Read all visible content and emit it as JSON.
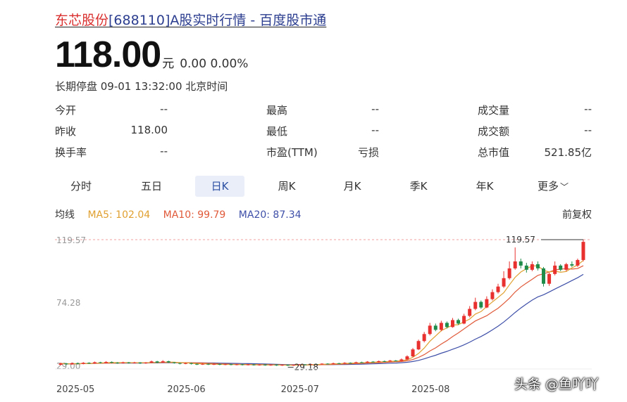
{
  "header": {
    "title_name": "东芯股份",
    "title_rest": "[688110]A股实时行情 - 百度股市通"
  },
  "quote": {
    "price": "118.00",
    "unit": "元",
    "change": "0.00 0.00%",
    "status": "长期停盘 09-01 13:32:00 北京时间"
  },
  "stats": [
    [
      {
        "label": "今开",
        "value": "--"
      },
      {
        "label": "最高",
        "value": "--"
      },
      {
        "label": "成交量",
        "value": "--"
      }
    ],
    [
      {
        "label": "昨收",
        "value": "118.00"
      },
      {
        "label": "最低",
        "value": "--"
      },
      {
        "label": "成交额",
        "value": "--"
      }
    ],
    [
      {
        "label": "换手率",
        "value": "--"
      },
      {
        "label": "市盈(TTM)",
        "value": "亏损"
      },
      {
        "label": "总市值",
        "value": "521.85亿"
      }
    ]
  ],
  "tabs": [
    "分时",
    "五日",
    "日K",
    "周K",
    "月K",
    "季K",
    "年K",
    "更多"
  ],
  "active_tab": "日K",
  "ma": {
    "label": "均线",
    "ma5": "MA5: 102.04",
    "ma10": "MA10: 99.79",
    "ma20": "MA20: 87.34",
    "adjust": "前复权"
  },
  "chart_data": {
    "type": "candlestick",
    "y_ticks": [
      "119.57",
      "74.28",
      "29.00"
    ],
    "ylim": [
      29,
      119.57
    ],
    "x_ticks": [
      {
        "label": "2025-05",
        "i": 0
      },
      {
        "label": "2025-06",
        "i": 20
      },
      {
        "label": "2025-07",
        "i": 40
      },
      {
        "label": "2025-08",
        "i": 63
      }
    ],
    "max_label": "119.57",
    "min_label": "29.18",
    "colors": {
      "up": "#e8312f",
      "down": "#1f8c4a",
      "ma5": "#e0a030",
      "ma10": "#e05a3a",
      "ma20": "#3e4fa8"
    },
    "candles": [
      {
        "o": 30.0,
        "c": 30.9,
        "h": 31.5,
        "l": 29.6
      },
      {
        "o": 30.9,
        "c": 30.3,
        "h": 31.3,
        "l": 29.9
      },
      {
        "o": 30.3,
        "c": 31.1,
        "h": 31.6,
        "l": 30.0
      },
      {
        "o": 31.1,
        "c": 30.6,
        "h": 31.5,
        "l": 30.2
      },
      {
        "o": 30.6,
        "c": 31.4,
        "h": 31.9,
        "l": 30.3
      },
      {
        "o": 31.4,
        "c": 31.0,
        "h": 31.8,
        "l": 30.6
      },
      {
        "o": 31.0,
        "c": 31.8,
        "h": 32.3,
        "l": 30.7
      },
      {
        "o": 31.8,
        "c": 31.3,
        "h": 32.1,
        "l": 30.9
      },
      {
        "o": 31.3,
        "c": 32.0,
        "h": 32.6,
        "l": 31.0
      },
      {
        "o": 32.0,
        "c": 31.5,
        "h": 32.4,
        "l": 31.1
      },
      {
        "o": 31.5,
        "c": 31.1,
        "h": 31.9,
        "l": 30.7
      },
      {
        "o": 31.1,
        "c": 31.7,
        "h": 32.2,
        "l": 30.8
      },
      {
        "o": 31.7,
        "c": 31.2,
        "h": 32.0,
        "l": 30.8
      },
      {
        "o": 31.2,
        "c": 31.6,
        "h": 32.1,
        "l": 30.9
      },
      {
        "o": 31.6,
        "c": 31.0,
        "h": 31.9,
        "l": 30.6
      },
      {
        "o": 31.0,
        "c": 31.5,
        "h": 31.9,
        "l": 30.7
      },
      {
        "o": 31.5,
        "c": 32.4,
        "h": 33.0,
        "l": 31.2
      },
      {
        "o": 32.4,
        "c": 31.6,
        "h": 32.8,
        "l": 31.2
      },
      {
        "o": 31.6,
        "c": 32.5,
        "h": 33.3,
        "l": 31.3
      },
      {
        "o": 32.5,
        "c": 31.7,
        "h": 32.9,
        "l": 31.3
      },
      {
        "o": 31.7,
        "c": 31.2,
        "h": 32.0,
        "l": 30.8
      },
      {
        "o": 31.2,
        "c": 30.7,
        "h": 31.5,
        "l": 30.3
      },
      {
        "o": 30.7,
        "c": 31.1,
        "h": 31.5,
        "l": 30.4
      },
      {
        "o": 31.1,
        "c": 30.6,
        "h": 31.4,
        "l": 30.2
      },
      {
        "o": 30.6,
        "c": 30.2,
        "h": 30.9,
        "l": 29.8
      },
      {
        "o": 30.2,
        "c": 30.6,
        "h": 31.0,
        "l": 29.9
      },
      {
        "o": 30.6,
        "c": 30.1,
        "h": 30.9,
        "l": 29.8
      },
      {
        "o": 30.1,
        "c": 30.5,
        "h": 30.9,
        "l": 29.8
      },
      {
        "o": 30.5,
        "c": 30.0,
        "h": 30.8,
        "l": 29.7
      },
      {
        "o": 30.0,
        "c": 30.4,
        "h": 30.8,
        "l": 29.7
      },
      {
        "o": 30.4,
        "c": 29.9,
        "h": 30.7,
        "l": 29.6
      },
      {
        "o": 29.9,
        "c": 30.3,
        "h": 30.6,
        "l": 29.6
      },
      {
        "o": 30.3,
        "c": 29.8,
        "h": 30.6,
        "l": 29.5
      },
      {
        "o": 29.8,
        "c": 30.2,
        "h": 30.5,
        "l": 29.5
      },
      {
        "o": 30.2,
        "c": 29.7,
        "h": 30.5,
        "l": 29.4
      },
      {
        "o": 29.7,
        "c": 30.1,
        "h": 30.4,
        "l": 29.4
      },
      {
        "o": 30.1,
        "c": 29.6,
        "h": 30.4,
        "l": 29.3
      },
      {
        "o": 29.6,
        "c": 30.0,
        "h": 30.3,
        "l": 29.3
      },
      {
        "o": 30.0,
        "c": 29.5,
        "h": 30.3,
        "l": 29.2
      },
      {
        "o": 29.5,
        "c": 29.9,
        "h": 30.2,
        "l": 29.2
      },
      {
        "o": 29.9,
        "c": 29.4,
        "h": 30.2,
        "l": 29.18
      },
      {
        "o": 29.4,
        "c": 29.9,
        "h": 30.2,
        "l": 29.2
      },
      {
        "o": 29.9,
        "c": 30.2,
        "h": 30.5,
        "l": 29.6
      },
      {
        "o": 30.2,
        "c": 30.0,
        "h": 30.5,
        "l": 29.7
      },
      {
        "o": 30.0,
        "c": 30.5,
        "h": 30.8,
        "l": 29.7
      },
      {
        "o": 30.5,
        "c": 30.3,
        "h": 30.8,
        "l": 30.0
      },
      {
        "o": 30.3,
        "c": 30.8,
        "h": 31.1,
        "l": 30.0
      },
      {
        "o": 30.8,
        "c": 30.6,
        "h": 31.1,
        "l": 30.3
      },
      {
        "o": 30.6,
        "c": 31.1,
        "h": 31.5,
        "l": 30.3
      },
      {
        "o": 31.1,
        "c": 30.9,
        "h": 31.4,
        "l": 30.6
      },
      {
        "o": 30.9,
        "c": 31.4,
        "h": 31.8,
        "l": 30.6
      },
      {
        "o": 31.4,
        "c": 31.2,
        "h": 31.7,
        "l": 30.9
      },
      {
        "o": 31.2,
        "c": 31.8,
        "h": 32.2,
        "l": 30.9
      },
      {
        "o": 31.8,
        "c": 31.6,
        "h": 32.2,
        "l": 31.3
      },
      {
        "o": 31.6,
        "c": 32.2,
        "h": 32.6,
        "l": 31.3
      },
      {
        "o": 32.2,
        "c": 32.0,
        "h": 32.6,
        "l": 31.7
      },
      {
        "o": 32.0,
        "c": 32.6,
        "h": 33.0,
        "l": 31.7
      },
      {
        "o": 32.6,
        "c": 32.4,
        "h": 33.0,
        "l": 32.1
      },
      {
        "o": 32.4,
        "c": 33.0,
        "h": 33.5,
        "l": 32.1
      },
      {
        "o": 33.0,
        "c": 32.8,
        "h": 33.4,
        "l": 32.5
      },
      {
        "o": 32.8,
        "c": 33.8,
        "h": 34.5,
        "l": 32.5
      },
      {
        "o": 33.8,
        "c": 36.0,
        "h": 36.8,
        "l": 33.5
      },
      {
        "o": 36.0,
        "c": 41.0,
        "h": 42.0,
        "l": 35.5
      },
      {
        "o": 41.0,
        "c": 47.0,
        "h": 48.0,
        "l": 40.5
      },
      {
        "o": 47.0,
        "c": 52.0,
        "h": 53.5,
        "l": 46.0
      },
      {
        "o": 52.0,
        "c": 58.0,
        "h": 60.0,
        "l": 51.0
      },
      {
        "o": 58.0,
        "c": 55.0,
        "h": 59.5,
        "l": 54.0
      },
      {
        "o": 55.0,
        "c": 60.0,
        "h": 61.5,
        "l": 54.0
      },
      {
        "o": 60.0,
        "c": 57.0,
        "h": 61.0,
        "l": 56.0
      },
      {
        "o": 57.0,
        "c": 62.0,
        "h": 63.5,
        "l": 56.5
      },
      {
        "o": 62.0,
        "c": 59.5,
        "h": 63.0,
        "l": 58.5
      },
      {
        "o": 59.5,
        "c": 65.0,
        "h": 66.5,
        "l": 59.0
      },
      {
        "o": 65.0,
        "c": 70.0,
        "h": 72.0,
        "l": 64.0
      },
      {
        "o": 70.0,
        "c": 75.0,
        "h": 78.0,
        "l": 69.0
      },
      {
        "o": 75.0,
        "c": 71.0,
        "h": 76.0,
        "l": 70.0
      },
      {
        "o": 71.0,
        "c": 77.0,
        "h": 79.0,
        "l": 70.5
      },
      {
        "o": 77.0,
        "c": 82.0,
        "h": 84.0,
        "l": 76.0
      },
      {
        "o": 82.0,
        "c": 86.0,
        "h": 88.0,
        "l": 81.0
      },
      {
        "o": 86.0,
        "c": 92.0,
        "h": 97.0,
        "l": 85.0
      },
      {
        "o": 92.0,
        "c": 99.0,
        "h": 104.0,
        "l": 91.0
      },
      {
        "o": 99.0,
        "c": 104.0,
        "h": 114.0,
        "l": 98.0
      },
      {
        "o": 104.0,
        "c": 101.0,
        "h": 106.0,
        "l": 99.0
      },
      {
        "o": 101.0,
        "c": 98.0,
        "h": 103.0,
        "l": 96.0
      },
      {
        "o": 98.0,
        "c": 102.0,
        "h": 104.0,
        "l": 97.0
      },
      {
        "o": 102.0,
        "c": 99.0,
        "h": 104.0,
        "l": 97.5
      },
      {
        "o": 99.0,
        "c": 88.0,
        "h": 100.0,
        "l": 86.0
      },
      {
        "o": 88.0,
        "c": 95.0,
        "h": 96.0,
        "l": 86.5
      },
      {
        "o": 95.0,
        "c": 101.0,
        "h": 104.0,
        "l": 94.0
      },
      {
        "o": 101.0,
        "c": 98.0,
        "h": 102.0,
        "l": 97.0
      },
      {
        "o": 98.0,
        "c": 102.0,
        "h": 103.0,
        "l": 97.0
      },
      {
        "o": 102.0,
        "c": 101.0,
        "h": 104.0,
        "l": 100.0
      },
      {
        "o": 101.0,
        "c": 105.0,
        "h": 106.0,
        "l": 100.0
      },
      {
        "o": 105.0,
        "c": 118.0,
        "h": 119.57,
        "l": 104.0
      }
    ]
  },
  "watermark": "头条 @鱼吖吖"
}
